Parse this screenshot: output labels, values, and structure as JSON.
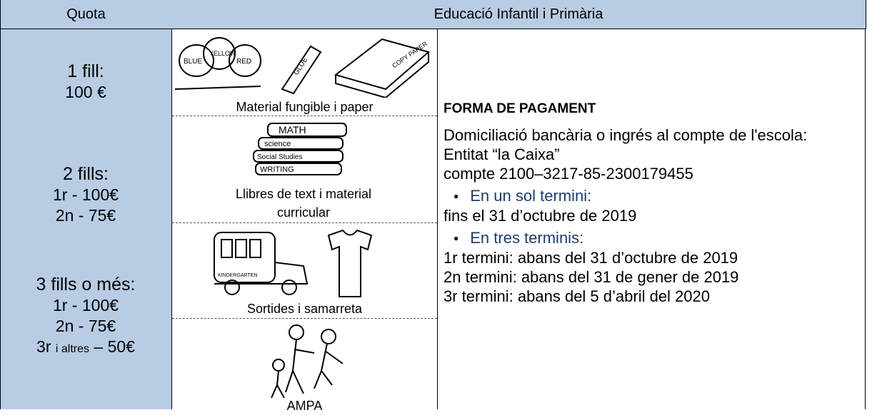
{
  "header": {
    "quota": "Quota",
    "level": "Educació Infantil i Primària"
  },
  "quotas": [
    {
      "title": "1 fill:",
      "lines": [
        "100 €"
      ]
    },
    {
      "title": "2 fills:",
      "lines": [
        "1r - 100€",
        "2n - 75€"
      ]
    },
    {
      "title": "3 fills o més:",
      "lines": [
        "1r - 100€",
        "2n - 75€"
      ],
      "last": {
        "start": "3r",
        "small": "i altres",
        "end": "– 50€"
      }
    }
  ],
  "items": [
    "Material fungible i paper",
    "Llibres de text i material curricular",
    "Sortides i samarreta",
    "AMPA"
  ],
  "payment": {
    "title": "FORMA DE PAGAMENT",
    "lines": [
      "Domiciliació bancària o ingrés al compte de l'escola:",
      "Entitat “la Caixa”",
      "compte 2100–3217-85-2300179455"
    ],
    "options": [
      {
        "label": "En un sol termini:",
        "lines": [
          "fins el 31 d’octubre de 2019"
        ]
      },
      {
        "label": "En tres terminis:",
        "lines": [
          "1r termini: abans del 31 d’octubre de 2019",
          "2n termini: abans del 31 de gener de 2019",
          "3r termini: abans del 5 d’abril del 2020"
        ]
      }
    ]
  }
}
